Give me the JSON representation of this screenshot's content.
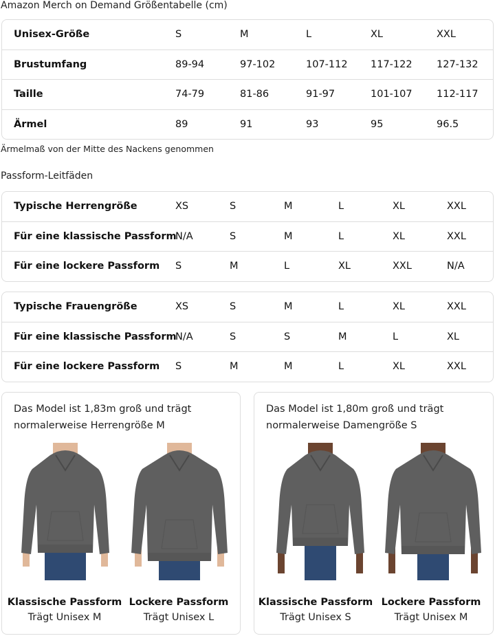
{
  "title": "Amazon Merch on Demand Größentabelle (cm)",
  "size_table": {
    "rows": [
      [
        "Unisex-Größe",
        "S",
        "M",
        "L",
        "XL",
        "XXL"
      ],
      [
        "Brustumfang",
        "89-94",
        "97-102",
        "107-112",
        "117-122",
        "127-132"
      ],
      [
        "Taille",
        "74-79",
        "81-86",
        "91-97",
        "101-107",
        "112-117"
      ],
      [
        "Ärmel",
        "89",
        "91",
        "93",
        "95",
        "96.5"
      ]
    ]
  },
  "note": "Ärmelmaß von der Mitte des Nackens genommen",
  "fit_title": "Passform-Leitfäden",
  "men_table": {
    "rows": [
      [
        "Typische Herrengröße",
        "XS",
        "S",
        "M",
        "L",
        "XL",
        "XXL"
      ],
      [
        "Für eine klassische Passform",
        "N/A",
        "S",
        "M",
        "L",
        "XL",
        "XXL"
      ],
      [
        "Für eine lockere Passform",
        "S",
        "M",
        "L",
        "XL",
        "XXL",
        "N/A"
      ]
    ]
  },
  "women_table": {
    "rows": [
      [
        "Typische Frauengröße",
        "XS",
        "S",
        "M",
        "L",
        "XL",
        "XXL"
      ],
      [
        "Für eine klassische Passform",
        "N/A",
        "S",
        "S",
        "M",
        "L",
        "XL"
      ],
      [
        "Für eine lockere Passform",
        "S",
        "M",
        "M",
        "L",
        "XL",
        "XXL"
      ]
    ]
  },
  "cards": [
    {
      "text_1": "Das Model ist 1,83m groß und trägt",
      "text_2": "normalerweise Herrengröße M",
      "figures": [
        {
          "title": "Klassische Passform",
          "sub": "Trägt Unisex M"
        },
        {
          "title": "Lockere Passform",
          "sub": "Trägt Unisex L"
        }
      ]
    },
    {
      "text_1": "Das Model ist 1,80m groß und trägt",
      "text_2": "normalerweise Damengröße S",
      "figures": [
        {
          "title": "Klassische Passform",
          "sub": "Trägt Unisex S"
        },
        {
          "title": "Lockere Passform",
          "sub": "Trägt Unisex M"
        }
      ]
    }
  ],
  "colors": {
    "hoodie": "#5f5f5f",
    "jeans": "#2f4a72",
    "skin_men": "#e0b89a",
    "skin_women": "#6b4430",
    "border": "#dddddd"
  }
}
